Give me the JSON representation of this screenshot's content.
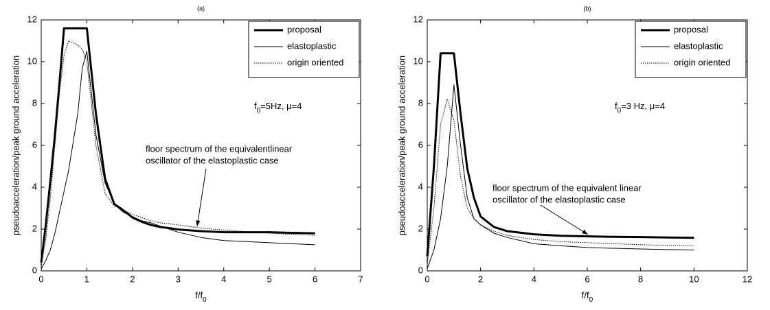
{
  "chart_data": [
    {
      "type": "line",
      "title": "(a)",
      "xlabel": [
        {
          "text": "f/f"
        },
        {
          "text": "0",
          "sub": true
        }
      ],
      "ylabel": "pseudoacceleration/peak ground acceleration",
      "note": [
        {
          "text": "f"
        },
        {
          "text": "0",
          "sub": true
        },
        {
          "text": "=5Hz,    μ=4"
        }
      ],
      "arrow_text": [
        "floor spectrum of the equivalentlinear",
        "oscillator of the elastoplastic case"
      ],
      "x": [
        0,
        0.1,
        0.2,
        0.3,
        0.4,
        0.5,
        0.6,
        0.8,
        0.9,
        1.0,
        1.2,
        1.4,
        1.6,
        1.8,
        2.0,
        2.2,
        2.4,
        2.6,
        2.8,
        3.0,
        3.5,
        4.0,
        4.5,
        5.0,
        5.5,
        6.0
      ],
      "series": [
        {
          "name": "proposal",
          "color": "#000000",
          "linewidth": 3,
          "linestyle": "solid",
          "values": [
            0.4,
            2.2,
            4.3,
            6.5,
            9,
            11.6,
            11.6,
            11.6,
            11.6,
            11.6,
            7.5,
            4.4,
            3.2,
            2.9,
            2.55,
            2.35,
            2.2,
            2.1,
            2.05,
            1.98,
            1.9,
            1.85,
            1.85,
            1.85,
            1.82,
            1.8
          ]
        },
        {
          "name": "elastoplastic",
          "color": "#000000",
          "linewidth": 1,
          "linestyle": "solid",
          "values": [
            0.1,
            0.5,
            1,
            1.8,
            2.8,
            3.8,
            4.8,
            7.5,
            9.7,
            10.5,
            6.5,
            4.2,
            3.2,
            2.8,
            2.6,
            2.4,
            2.3,
            2.15,
            2.0,
            1.85,
            1.6,
            1.45,
            1.4,
            1.35,
            1.3,
            1.25
          ]
        },
        {
          "name": "origin oriented",
          "color": "#000000",
          "linewidth": 1,
          "linestyle": "dotted",
          "values": [
            0.2,
            1.5,
            3.5,
            6,
            8.5,
            10.3,
            11,
            10.8,
            10.6,
            10,
            6,
            3.7,
            3.1,
            2.9,
            2.7,
            2.55,
            2.4,
            2.3,
            2.25,
            2.2,
            2.05,
            1.95,
            1.88,
            1.8,
            1.75,
            1.7
          ]
        }
      ],
      "xlim": [
        0,
        7
      ],
      "xticks": [
        0,
        1,
        2,
        3,
        4,
        5,
        6,
        7
      ],
      "ylim": [
        0,
        12
      ],
      "yticks": [
        0,
        2,
        4,
        6,
        8,
        10,
        12
      ],
      "legend": "upper right",
      "grid": false
    },
    {
      "type": "line",
      "title": "(b)",
      "xlabel": [
        {
          "text": "f/f"
        },
        {
          "text": "0",
          "sub": true
        }
      ],
      "ylabel": "pseudoacceleration/peak ground acceleration",
      "note": [
        {
          "text": "f"
        },
        {
          "text": "0",
          "sub": true
        },
        {
          "text": "=3 Hz,    μ=4"
        }
      ],
      "arrow_text": [
        "floor spectrum of the equivalent linear",
        "oscillator of the elastoplastic case"
      ],
      "x": [
        0,
        0.25,
        0.5,
        0.75,
        1.0,
        1.25,
        1.5,
        1.75,
        2,
        2.5,
        3,
        4,
        5,
        6,
        7,
        8,
        9,
        10
      ],
      "series": [
        {
          "name": "proposal",
          "color": "#000000",
          "linewidth": 3,
          "linestyle": "solid",
          "values": [
            0.7,
            5,
            10.4,
            10.4,
            10.4,
            7.5,
            4.9,
            3.5,
            2.6,
            2.1,
            1.9,
            1.75,
            1.68,
            1.65,
            1.63,
            1.62,
            1.6,
            1.58
          ]
        },
        {
          "name": "elastoplastic",
          "color": "#000000",
          "linewidth": 1,
          "linestyle": "solid",
          "values": [
            0.1,
            1,
            2.5,
            5,
            8.9,
            6,
            3.5,
            2.5,
            2.2,
            1.8,
            1.6,
            1.3,
            1.2,
            1.12,
            1.08,
            1.05,
            1.02,
            1.0
          ]
        },
        {
          "name": "origin oriented",
          "color": "#000000",
          "linewidth": 1,
          "linestyle": "dotted",
          "values": [
            0.3,
            3,
            7,
            8.2,
            7.2,
            4.5,
            3,
            2.5,
            2.2,
            1.9,
            1.7,
            1.5,
            1.4,
            1.35,
            1.3,
            1.25,
            1.22,
            1.2
          ]
        }
      ],
      "xlim": [
        0,
        12
      ],
      "xticks": [
        0,
        2,
        4,
        6,
        8,
        10,
        12
      ],
      "ylim": [
        0,
        12
      ],
      "yticks": [
        0,
        2,
        4,
        6,
        8,
        10,
        12
      ],
      "legend": "upper right",
      "grid": false
    }
  ]
}
